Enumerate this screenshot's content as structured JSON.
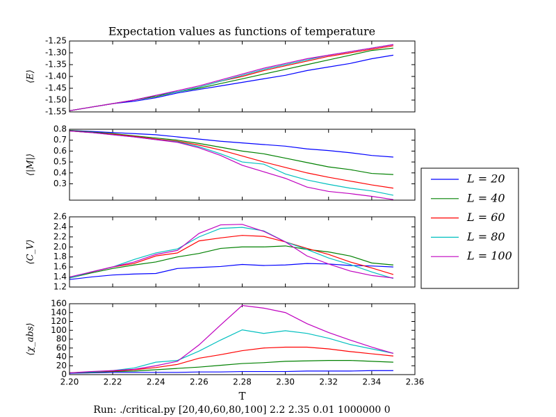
{
  "chart_data": [
    {
      "type": "line",
      "title": "Expectation values as functions of temperature",
      "ylabel": "⟨E⟩",
      "x": [
        2.2,
        2.21,
        2.22,
        2.23,
        2.24,
        2.25,
        2.26,
        2.27,
        2.28,
        2.29,
        2.3,
        2.31,
        2.32,
        2.33,
        2.34,
        2.35
      ],
      "xlim": [
        2.2,
        2.36
      ],
      "xticks": [
        {
          "value": 2.2,
          "label": "2.20"
        },
        2.22,
        2.24,
        2.26,
        2.28,
        {
          "value": 2.3,
          "label": "2.30"
        },
        2.32,
        2.34,
        2.36
      ],
      "ylim": [
        -1.55,
        -1.25
      ],
      "yticks": [
        {
          "value": -1.55,
          "label": "-1.55"
        },
        {
          "value": -1.5,
          "label": "-1.50"
        },
        -1.45,
        {
          "value": -1.4,
          "label": "-1.40"
        },
        -1.35,
        {
          "value": -1.3,
          "label": "-1.30"
        },
        -1.25
      ],
      "series": [
        {
          "name": "L = 20",
          "color": "#0000ff",
          "values": [
            -1.545,
            -1.53,
            -1.515,
            -1.505,
            -1.49,
            -1.47,
            -1.455,
            -1.44,
            -1.425,
            -1.41,
            -1.395,
            -1.375,
            -1.36,
            -1.345,
            -1.325,
            -1.31
          ]
        },
        {
          "name": "L = 40",
          "color": "#008000",
          "values": [
            -1.545,
            -1.53,
            -1.515,
            -1.5,
            -1.485,
            -1.465,
            -1.45,
            -1.43,
            -1.41,
            -1.39,
            -1.37,
            -1.35,
            -1.33,
            -1.31,
            -1.29,
            -1.28
          ]
        },
        {
          "name": "L = 60",
          "color": "#ff0000",
          "values": [
            -1.545,
            -1.53,
            -1.515,
            -1.5,
            -1.48,
            -1.465,
            -1.445,
            -1.42,
            -1.4,
            -1.375,
            -1.355,
            -1.335,
            -1.315,
            -1.3,
            -1.285,
            -1.27
          ]
        },
        {
          "name": "L = 80",
          "color": "#00bfbf",
          "values": [
            -1.545,
            -1.53,
            -1.515,
            -1.5,
            -1.48,
            -1.465,
            -1.445,
            -1.42,
            -1.395,
            -1.37,
            -1.35,
            -1.33,
            -1.31,
            -1.295,
            -1.28,
            -1.265
          ]
        },
        {
          "name": "L = 100",
          "color": "#bf00bf",
          "values": [
            -1.545,
            -1.53,
            -1.515,
            -1.5,
            -1.48,
            -1.46,
            -1.44,
            -1.415,
            -1.39,
            -1.365,
            -1.345,
            -1.325,
            -1.31,
            -1.295,
            -1.28,
            -1.265
          ]
        }
      ]
    },
    {
      "type": "line",
      "ylabel": "⟨|M|⟩",
      "x": [
        2.2,
        2.21,
        2.22,
        2.23,
        2.24,
        2.25,
        2.26,
        2.27,
        2.28,
        2.29,
        2.3,
        2.31,
        2.32,
        2.33,
        2.34,
        2.35
      ],
      "xlim": [
        2.2,
        2.36
      ],
      "xticks": [
        2.2,
        2.22,
        2.24,
        2.26,
        2.28,
        2.3,
        2.32,
        2.34,
        2.36
      ],
      "ylim": [
        0.15,
        0.8
      ],
      "yticks": [
        0.3,
        0.4,
        0.5,
        0.6,
        0.7,
        0.8
      ],
      "series": [
        {
          "color": "#0000ff",
          "values": [
            0.79,
            0.78,
            0.77,
            0.76,
            0.75,
            0.73,
            0.71,
            0.69,
            0.675,
            0.66,
            0.645,
            0.62,
            0.605,
            0.585,
            0.56,
            0.545
          ]
        },
        {
          "color": "#008000",
          "values": [
            0.79,
            0.775,
            0.76,
            0.74,
            0.72,
            0.7,
            0.67,
            0.635,
            0.6,
            0.575,
            0.535,
            0.495,
            0.455,
            0.43,
            0.395,
            0.385
          ]
        },
        {
          "color": "#ff0000",
          "values": [
            0.785,
            0.77,
            0.755,
            0.735,
            0.71,
            0.69,
            0.655,
            0.61,
            0.555,
            0.5,
            0.45,
            0.4,
            0.36,
            0.325,
            0.29,
            0.26
          ]
        },
        {
          "color": "#00bfbf",
          "values": [
            0.785,
            0.77,
            0.75,
            0.73,
            0.705,
            0.685,
            0.64,
            0.575,
            0.5,
            0.48,
            0.39,
            0.335,
            0.295,
            0.26,
            0.235,
            0.195
          ]
        },
        {
          "color": "#bf00bf",
          "values": [
            0.785,
            0.77,
            0.75,
            0.73,
            0.705,
            0.68,
            0.63,
            0.56,
            0.47,
            0.41,
            0.35,
            0.27,
            0.23,
            0.21,
            0.185,
            0.155
          ]
        }
      ]
    },
    {
      "type": "line",
      "ylabel": "⟨C_V⟩",
      "x": [
        2.2,
        2.21,
        2.22,
        2.23,
        2.24,
        2.25,
        2.26,
        2.27,
        2.28,
        2.29,
        2.3,
        2.31,
        2.32,
        2.33,
        2.34,
        2.35
      ],
      "xlim": [
        2.2,
        2.36
      ],
      "xticks": [
        2.2,
        2.22,
        2.24,
        2.26,
        2.28,
        2.3,
        2.32,
        2.34,
        2.36
      ],
      "ylim": [
        1.2,
        2.6
      ],
      "yticks": [
        1.2,
        1.4,
        1.6,
        1.8,
        {
          "value": 2,
          "label": "2.0"
        },
        2.2,
        2.4,
        2.6
      ],
      "series": [
        {
          "color": "#0000ff",
          "values": [
            1.35,
            1.4,
            1.44,
            1.46,
            1.47,
            1.57,
            1.59,
            1.61,
            1.65,
            1.63,
            1.64,
            1.67,
            1.66,
            1.63,
            1.62,
            1.6
          ]
        },
        {
          "color": "#008000",
          "values": [
            1.38,
            1.48,
            1.57,
            1.64,
            1.7,
            1.8,
            1.87,
            1.97,
            2.0,
            2.0,
            2.02,
            1.95,
            1.9,
            1.82,
            1.68,
            1.64
          ]
        },
        {
          "color": "#ff0000",
          "values": [
            1.38,
            1.5,
            1.6,
            1.67,
            1.82,
            1.88,
            2.12,
            2.18,
            2.23,
            2.21,
            2.1,
            1.97,
            1.85,
            1.7,
            1.58,
            1.45
          ]
        },
        {
          "color": "#00bfbf",
          "values": [
            1.38,
            1.5,
            1.6,
            1.75,
            1.88,
            1.96,
            2.2,
            2.37,
            2.39,
            2.32,
            2.1,
            1.95,
            1.78,
            1.65,
            1.5,
            1.37
          ]
        },
        {
          "color": "#bf00bf",
          "values": [
            1.4,
            1.5,
            1.6,
            1.7,
            1.85,
            1.93,
            2.27,
            2.44,
            2.45,
            2.31,
            2.1,
            1.82,
            1.66,
            1.52,
            1.43,
            1.38
          ]
        }
      ]
    },
    {
      "type": "line",
      "ylabel": "⟨χ_abs⟩",
      "xlabel": "T",
      "x": [
        2.2,
        2.21,
        2.22,
        2.23,
        2.24,
        2.25,
        2.26,
        2.27,
        2.28,
        2.29,
        2.3,
        2.31,
        2.32,
        2.33,
        2.34,
        2.35
      ],
      "xlim": [
        2.2,
        2.36
      ],
      "xticks": [
        {
          "value": 2.2,
          "label": "2.20"
        },
        2.22,
        2.24,
        2.26,
        2.28,
        {
          "value": 2.3,
          "label": "2.30"
        },
        2.32,
        2.34,
        2.36
      ],
      "ylim": [
        0,
        160
      ],
      "yticks": [
        0,
        20,
        40,
        60,
        80,
        100,
        120,
        140,
        160
      ],
      "series": [
        {
          "color": "#0000ff",
          "values": [
            3,
            4,
            5,
            5,
            5,
            5,
            6,
            6,
            7,
            7,
            7,
            8,
            8,
            8,
            9,
            9
          ]
        },
        {
          "color": "#008000",
          "values": [
            4,
            5,
            7,
            8,
            11,
            14,
            17,
            21,
            25,
            27,
            30,
            31,
            32,
            32,
            30,
            28
          ]
        },
        {
          "color": "#ff0000",
          "values": [
            4,
            6,
            8,
            11,
            16,
            23,
            37,
            45,
            54,
            60,
            62,
            62,
            58,
            52,
            47,
            42
          ]
        },
        {
          "color": "#00bfbf",
          "values": [
            4,
            6,
            9,
            15,
            28,
            32,
            53,
            78,
            101,
            93,
            99,
            93,
            82,
            68,
            58,
            48
          ]
        },
        {
          "color": "#bf00bf",
          "values": [
            4,
            7,
            9,
            12,
            20,
            30,
            67,
            112,
            156,
            150,
            140,
            115,
            95,
            78,
            62,
            48
          ]
        }
      ]
    }
  ],
  "footer": "Run: ./critical.py [20,40,60,80,100] 2.2 2.35 0.01 1000000 0"
}
